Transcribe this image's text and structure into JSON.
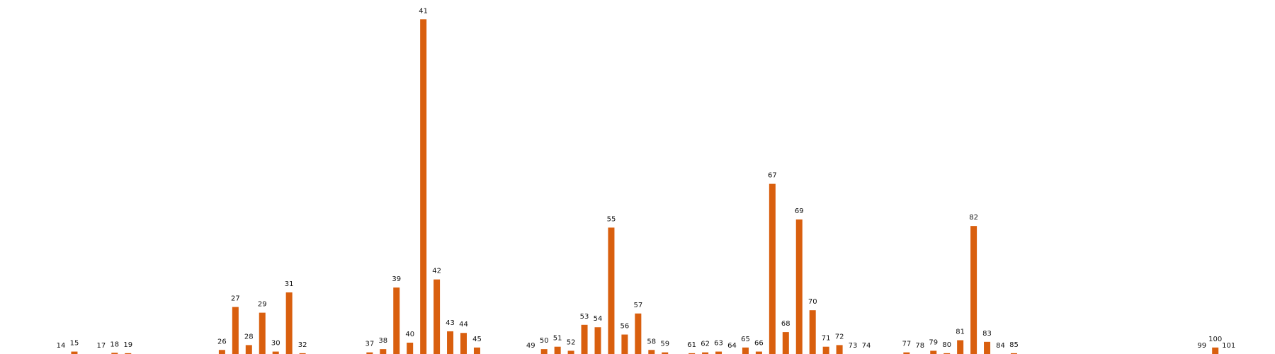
{
  "chart_data": {
    "type": "bar",
    "title": "",
    "xlabel": "",
    "ylabel": "",
    "ylim": [
      0,
      41.5
    ],
    "grid": false,
    "legend": "none",
    "color": "#d95f0e",
    "categories": [
      "14",
      "15",
      "17",
      "18",
      "19",
      "26",
      "27",
      "28",
      "29",
      "30",
      "31",
      "32",
      "37",
      "38",
      "39",
      "40",
      "41",
      "42",
      "43",
      "44",
      "45",
      "49",
      "50",
      "51",
      "52",
      "53",
      "54",
      "55",
      "56",
      "57",
      "58",
      "59",
      "61",
      "62",
      "63",
      "64",
      "65",
      "66",
      "67",
      "68",
      "69",
      "70",
      "71",
      "72",
      "73",
      "74",
      "77",
      "78",
      "79",
      "80",
      "81",
      "82",
      "83",
      "84",
      "85",
      "99",
      "100",
      "101"
    ],
    "x": [
      14,
      15,
      17,
      18,
      19,
      26,
      27,
      28,
      29,
      30,
      31,
      32,
      37,
      38,
      39,
      40,
      41,
      42,
      43,
      44,
      45,
      49,
      50,
      51,
      52,
      53,
      54,
      55,
      56,
      57,
      58,
      59,
      61,
      62,
      63,
      64,
      65,
      66,
      67,
      68,
      69,
      70,
      71,
      72,
      73,
      74,
      77,
      78,
      79,
      80,
      81,
      82,
      83,
      84,
      85,
      99,
      100,
      101
    ],
    "values": [
      0,
      0.3,
      0,
      0.15,
      0.1,
      0.5,
      5.8,
      1.1,
      5.1,
      0.3,
      7.6,
      0.1,
      0.2,
      0.6,
      8.2,
      1.4,
      41.3,
      9.2,
      2.8,
      2.6,
      0.8,
      0,
      0.6,
      0.9,
      0.4,
      3.6,
      3.3,
      15.6,
      2.4,
      5.0,
      0.5,
      0.2,
      0.1,
      0.2,
      0.3,
      0,
      0.8,
      0.3,
      21.0,
      2.7,
      16.6,
      5.4,
      0.9,
      1.1,
      0,
      0,
      0.2,
      0,
      0.4,
      0.1,
      1.7,
      15.8,
      1.5,
      0,
      0.1,
      0,
      0.8,
      0
    ]
  }
}
